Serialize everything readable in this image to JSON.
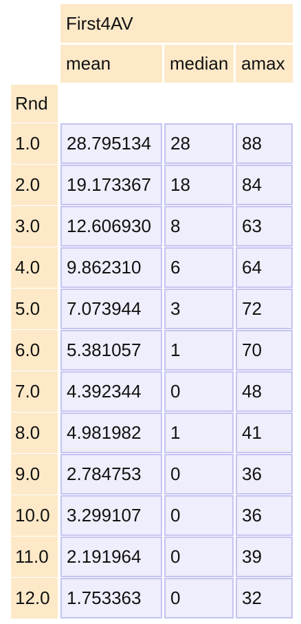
{
  "table": {
    "group_header": "First4AV",
    "columns": [
      "mean",
      "median",
      "amax"
    ],
    "index_name": "Rnd",
    "rows": [
      {
        "rnd": "1.0",
        "mean": "28.795134",
        "median": "28",
        "amax": "88"
      },
      {
        "rnd": "2.0",
        "mean": "19.173367",
        "median": "18",
        "amax": "84"
      },
      {
        "rnd": "3.0",
        "mean": "12.606930",
        "median": "8",
        "amax": "63"
      },
      {
        "rnd": "4.0",
        "mean": "9.862310",
        "median": "6",
        "amax": "64"
      },
      {
        "rnd": "5.0",
        "mean": "7.073944",
        "median": "3",
        "amax": "72"
      },
      {
        "rnd": "6.0",
        "mean": "5.381057",
        "median": "1",
        "amax": "70"
      },
      {
        "rnd": "7.0",
        "mean": "4.392344",
        "median": "0",
        "amax": "48"
      },
      {
        "rnd": "8.0",
        "mean": "4.981982",
        "median": "1",
        "amax": "41"
      },
      {
        "rnd": "9.0",
        "mean": "2.784753",
        "median": "0",
        "amax": "36"
      },
      {
        "rnd": "10.0",
        "mean": "3.299107",
        "median": "0",
        "amax": "36"
      },
      {
        "rnd": "11.0",
        "mean": "2.191964",
        "median": "0",
        "amax": "39"
      },
      {
        "rnd": "12.0",
        "mean": "1.753363",
        "median": "0",
        "amax": "32"
      }
    ]
  },
  "colors": {
    "header_bg": "#fde9c8",
    "cell_bg": "#eeeefc",
    "cell_border": "#c3c3f2"
  }
}
